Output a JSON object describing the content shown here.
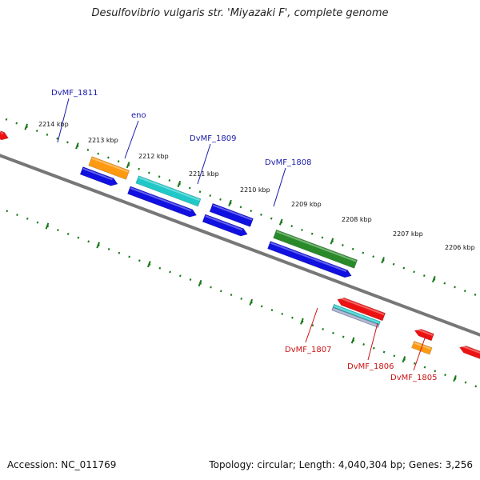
{
  "header": {
    "title": "Desulfovibrio vulgaris str. 'Miyazaki F', complete genome"
  },
  "footer": {
    "accession": "Accession: NC_011769",
    "stats": "Topology: circular; Length: 4,040,304 bp; Genes: 3,256"
  },
  "ruler": {
    "ticks": [
      "2214 kbp",
      "2213 kbp",
      "2212 kbp",
      "2211 kbp",
      "2210 kbp",
      "2209 kbp",
      "2208 kbp",
      "2207 kbp",
      "2206 kbp"
    ]
  },
  "gene_labels": {
    "forward": [
      "DvMF_1811",
      "eno",
      "DvMF_1809",
      "DvMF_1808"
    ],
    "reverse": [
      "DvMF_1807",
      "DvMF_1806",
      "DvMF_1805"
    ]
  },
  "colors": {
    "forward_label": "#1a1aaa",
    "reverse_label": "#cc1111",
    "backbone": "#777777",
    "tick": "#1a7a1a",
    "blue": "#1010e0",
    "orange": "#ff9a10",
    "cyan": "#20c8c8",
    "green": "#2a8a2a",
    "red": "#ee1111",
    "olive": "#b8b070",
    "gray": "#8f9cc0"
  }
}
